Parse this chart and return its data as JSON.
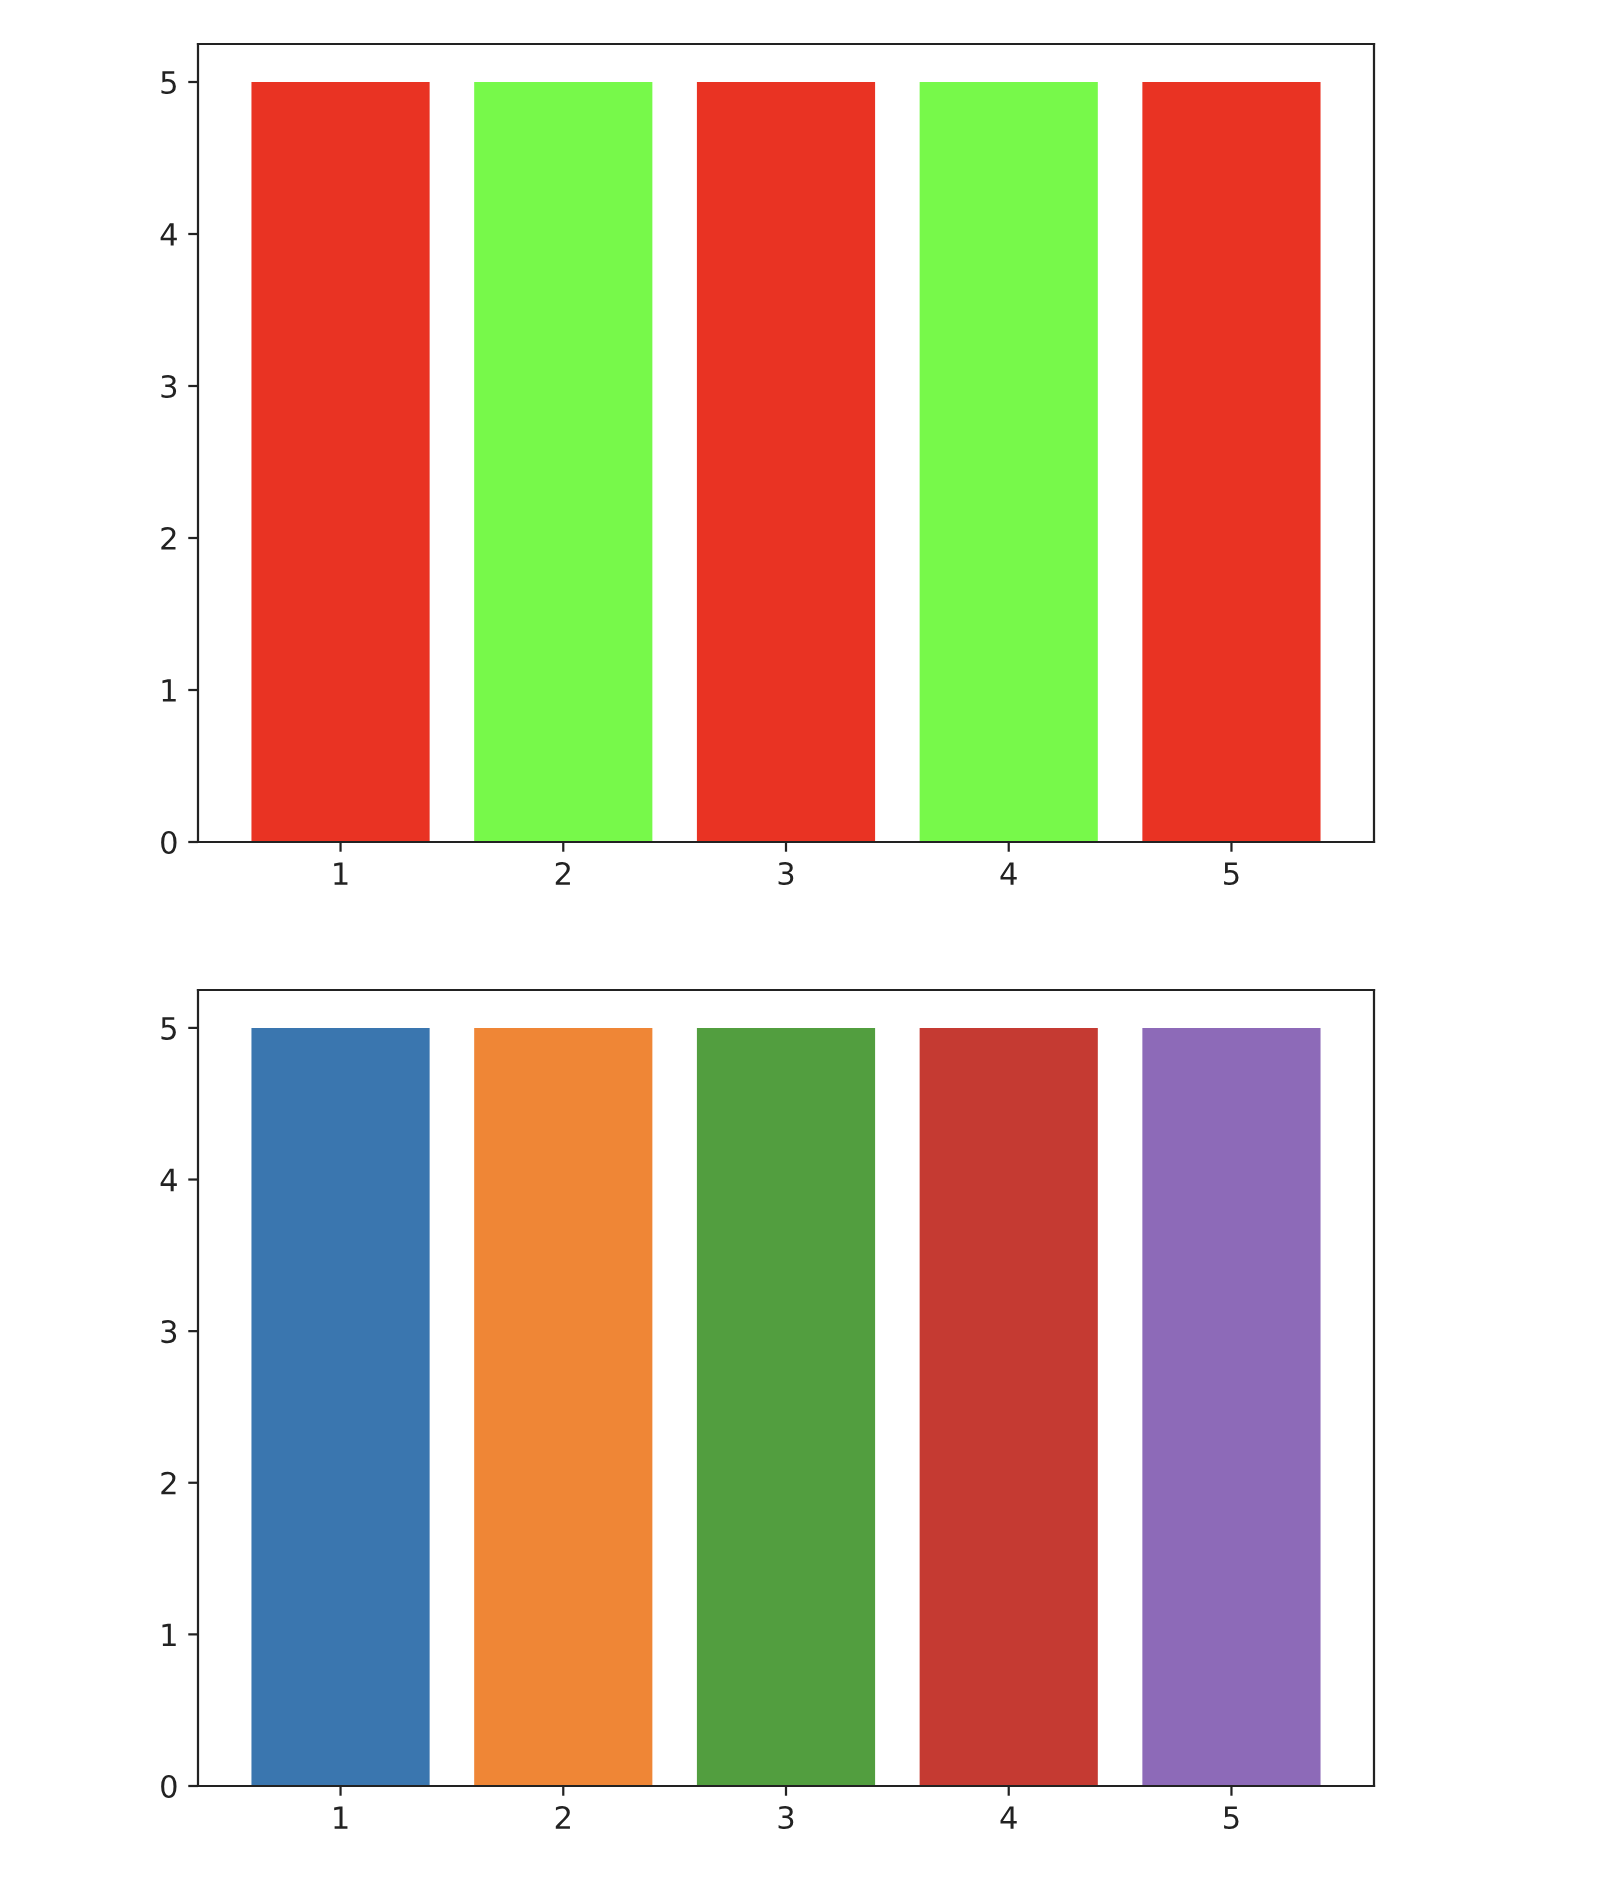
{
  "chart_data": [
    {
      "type": "bar",
      "categories": [
        "1",
        "2",
        "3",
        "4",
        "5"
      ],
      "values": [
        5,
        5,
        5,
        5,
        5
      ],
      "colors": [
        "#e93323",
        "#77f94a",
        "#e93323",
        "#77f94a",
        "#e93323"
      ],
      "ylim": [
        0,
        5.25
      ],
      "yticks": [
        0,
        1,
        2,
        3,
        4,
        5
      ]
    },
    {
      "type": "bar",
      "categories": [
        "1",
        "2",
        "3",
        "4",
        "5"
      ],
      "values": [
        5,
        5,
        5,
        5,
        5
      ],
      "colors": [
        "#3a76af",
        "#ef8636",
        "#529e3f",
        "#c53a32",
        "#8d6ab8"
      ],
      "ylim": [
        0,
        5.25
      ],
      "yticks": [
        0,
        1,
        2,
        3,
        4,
        5
      ]
    }
  ]
}
